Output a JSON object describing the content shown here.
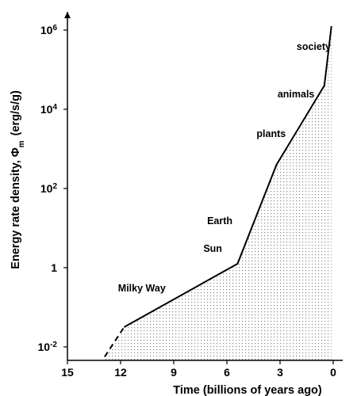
{
  "chart_data": {
    "type": "line",
    "title": "",
    "xlabel": "Time (billions of years ago)",
    "ylabel": "Energy rate density, Φm (erg/s/g)",
    "x_reversed": true,
    "xlim": [
      15,
      0
    ],
    "ylim_log10": [
      -2.1,
      6.3
    ],
    "y_scale": "log",
    "x_ticks": [
      15,
      12,
      9,
      6,
      3,
      0
    ],
    "y_ticks": [
      {
        "exp": -2,
        "base": "10",
        "sup": "-2"
      },
      {
        "exp": 0,
        "base": "1",
        "sup": ""
      },
      {
        "exp": 2,
        "base": "10",
        "sup": "2"
      },
      {
        "exp": 4,
        "base": "10",
        "sup": "4"
      },
      {
        "exp": 6,
        "base": "10",
        "sup": "6"
      }
    ],
    "series": [
      {
        "style": "dashed",
        "points": [
          {
            "x": 12.9,
            "y_log10": -2.25
          },
          {
            "x": 11.8,
            "y_log10": -1.5
          }
        ]
      },
      {
        "style": "solid",
        "points": [
          {
            "x": 11.8,
            "y_log10": -1.5
          },
          {
            "x": 5.4,
            "y_log10": 0.1
          },
          {
            "x": 3.2,
            "y_log10": 2.6
          },
          {
            "x": 0.5,
            "y_log10": 4.6
          },
          {
            "x": 0.1,
            "y_log10": 6.1
          }
        ]
      }
    ],
    "shaded_area": "dotted fill under curve",
    "annotations": [
      {
        "text": "Milky Way",
        "x": 10.8,
        "y_log10": -0.6
      },
      {
        "text": "Sun",
        "x": 6.8,
        "y_log10": 0.4
      },
      {
        "text": "Earth",
        "x": 6.4,
        "y_log10": 1.1
      },
      {
        "text": "plants",
        "x": 3.5,
        "y_log10": 3.3
      },
      {
        "text": "animals",
        "x": 2.1,
        "y_log10": 4.3
      },
      {
        "text": "society",
        "x": 1.1,
        "y_log10": 5.5
      }
    ],
    "grid": false,
    "colors": {
      "line": "#000000",
      "dots": "#888888"
    }
  }
}
